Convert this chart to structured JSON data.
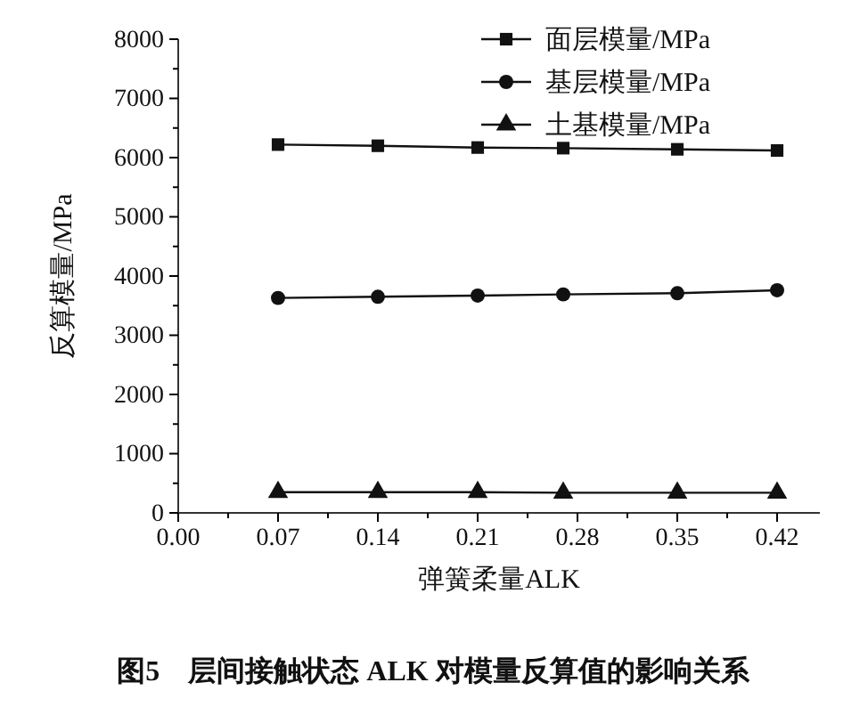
{
  "chart_data": {
    "type": "line",
    "xlabel": "弹簧柔量ALK",
    "ylabel": "反算模量/MPa",
    "annotations": [
      "图5　层间接触状态 ALK 对模量反算值的影响关系"
    ],
    "x": [
      0.07,
      0.14,
      0.21,
      0.27,
      0.35,
      0.42
    ],
    "xlim": [
      0,
      0.45
    ],
    "xticks": [
      {
        "value": 0,
        "label": "0.00"
      },
      {
        "value": 0.035,
        "label": null
      },
      0.07,
      {
        "value": 0.105,
        "label": null
      },
      0.14,
      {
        "value": 0.175,
        "label": null
      },
      0.21,
      {
        "value": 0.245,
        "label": null
      },
      {
        "value": 0.28,
        "label": "0.28"
      },
      {
        "value": 0.315,
        "label": null
      },
      0.35,
      {
        "value": 0.385,
        "label": null
      },
      0.42
    ],
    "ylim": [
      0,
      8000
    ],
    "yticks": [
      0,
      {
        "value": 500,
        "label": null
      },
      1000,
      {
        "value": 1500,
        "label": null
      },
      2000,
      {
        "value": 2500,
        "label": null
      },
      3000,
      {
        "value": 3500,
        "label": null
      },
      4000,
      {
        "value": 4500,
        "label": null
      },
      5000,
      {
        "value": 5500,
        "label": null
      },
      6000,
      {
        "value": 6500,
        "label": null
      },
      7000,
      {
        "value": 7500,
        "label": null
      },
      8000
    ],
    "legend": "top right",
    "line_style": "solid",
    "grid": false,
    "series": [
      {
        "name": "面层模量/MPa",
        "color": "#111111",
        "marker": "square",
        "values": [
          6220,
          6200,
          6170,
          6160,
          6140,
          6120
        ]
      },
      {
        "name": "基层模量/MPa",
        "color": "#111111",
        "marker": "circle",
        "values": [
          3630,
          3650,
          3670,
          3690,
          3710,
          3760
        ]
      },
      {
        "name": "土基模量/MPa",
        "color": "#111111",
        "marker": "triangle",
        "values": [
          350,
          350,
          350,
          340,
          340,
          340
        ]
      }
    ]
  }
}
